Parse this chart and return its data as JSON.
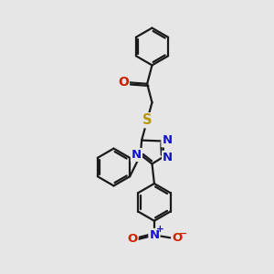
{
  "background_color": "#e6e6e6",
  "bond_color": "#1a1a1a",
  "bond_width": 1.6,
  "S_color": "#b8960c",
  "N_color": "#1414cc",
  "O_color": "#cc2200",
  "fig_width": 3.0,
  "fig_height": 3.0,
  "dpi": 100,
  "xlim": [
    0,
    10
  ],
  "ylim": [
    0,
    10
  ]
}
